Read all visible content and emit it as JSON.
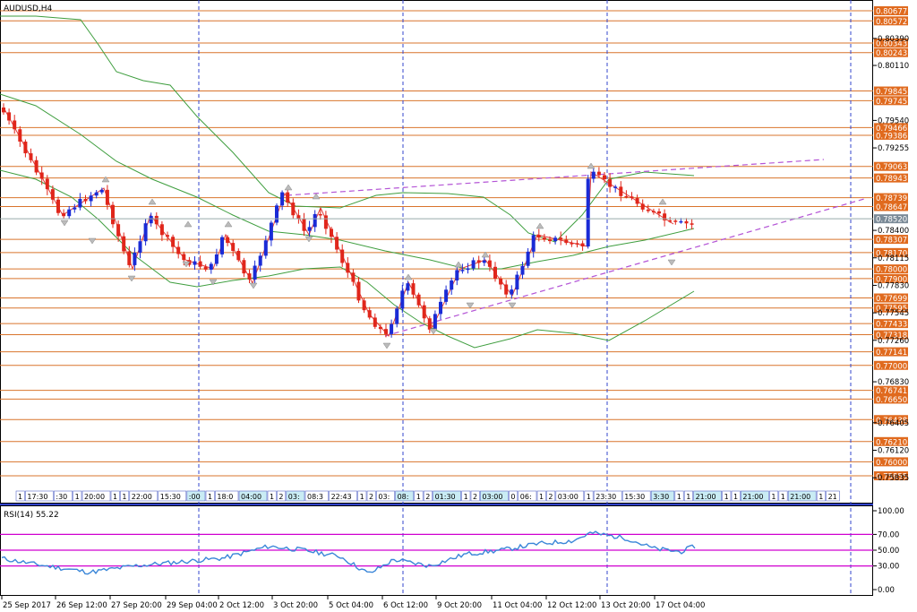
{
  "symbol_title": "AUDUSD,H4",
  "rsi_title": "RSI(14) 55.22",
  "colors": {
    "up": "#1a2bd6",
    "down": "#e0261b",
    "level": "#d9742c",
    "label_bg": "#e06a1e",
    "band": "#3f9e3f",
    "grid": "#3344cc",
    "trend": "#b455d6",
    "rsi_line": "#3a86d8",
    "rsi_level": "#d000d0"
  },
  "price_axis": {
    "ticks": [
      "0.80390",
      "0.80110",
      "0.79540",
      "0.79255",
      "0.78400",
      "0.78115",
      "0.77830",
      "0.77545",
      "0.77260",
      "0.76830",
      "0.76405",
      "0.76120",
      "0.75835"
    ],
    "current": "0.78520"
  },
  "levels": [
    "0.80677",
    "0.80572",
    "0.80343",
    "0.80243",
    "0.79845",
    "0.79745",
    "0.79466",
    "0.79386",
    "0.79063",
    "0.78943",
    "0.78739",
    "0.78647",
    "0.78307",
    "0.78170",
    "0.78000",
    "0.77900",
    "0.77699",
    "0.77595",
    "0.77433",
    "0.77318",
    "0.77141",
    "0.77000",
    "0.76741",
    "0.76650",
    "0.76438",
    "0.76210",
    "0.76000",
    "0.75855"
  ],
  "time_axis": [
    "25 Sep 2017",
    "26 Sep 12:00",
    "27 Sep 20:00",
    "29 Sep 04:00",
    "2 Oct 12:00",
    "3 Oct 20:00",
    "5 Oct 04:00",
    "6 Oct 12:00",
    "9 Oct 20:00",
    "11 Oct 04:00",
    "12 Oct 12:00",
    "13 Oct 20:00",
    "17 Oct 04:00"
  ],
  "rsi_axis": [
    "100.00",
    "70.00",
    "50.00",
    "30.00",
    "0.00"
  ],
  "session_labels": [
    "1",
    "17:30",
    ":30",
    "1",
    "20:00",
    "1",
    "1",
    "22:00",
    "15:30",
    ":00",
    "1",
    "18:0",
    "04:00",
    "1",
    "2",
    "03:",
    "08:3",
    "22:43",
    "1",
    "2",
    "03:",
    "08:",
    "1",
    "2",
    "01:30",
    "1",
    "2",
    "03:00",
    "0",
    "06:",
    "1",
    "2",
    "03:00",
    "1",
    "23:30",
    "15:30",
    "3:30",
    "1",
    "1",
    "21:00",
    "1",
    "1",
    "21:00",
    "1",
    "1",
    "21:00",
    "1",
    "21",
    "03:30",
    "16:30",
    "1",
    "21:00"
  ]
}
